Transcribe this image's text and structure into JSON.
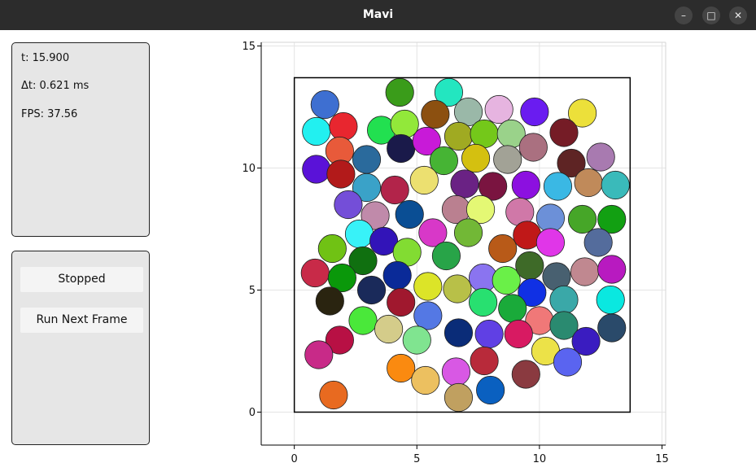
{
  "window": {
    "title": "Mavi",
    "controls": {
      "minimize": "–",
      "maximize": "□",
      "close": "✕"
    }
  },
  "info_panel": {
    "time": "t: 15.900",
    "dt": "Δt: 0.621 ms",
    "fps": "FPS: 37.56"
  },
  "controls_panel": {
    "toggle_label": "Stopped",
    "next_frame_label": "Run Next Frame"
  },
  "chart_data": {
    "type": "scatter",
    "title": "",
    "xlabel": "",
    "ylabel": "",
    "xlim": [
      -1.35,
      15.15
    ],
    "ylim": [
      -1.35,
      15.15
    ],
    "x_ticks": [
      0,
      5,
      10,
      15
    ],
    "y_ticks": [
      0,
      5,
      10,
      15
    ],
    "x_tick_labels": [
      "0",
      "5",
      "10",
      "15"
    ],
    "y_tick_labels": [
      "0",
      "5",
      "10",
      "15"
    ],
    "grid": true,
    "box": {
      "x": [
        0,
        13.7
      ],
      "y": [
        0,
        13.7
      ]
    },
    "particle_radius": 0.57,
    "particles": [
      {
        "x": 1.25,
        "y": 12.6,
        "color": "#3e6fd1"
      },
      {
        "x": 4.3,
        "y": 13.1,
        "color": "#3a9c1a"
      },
      {
        "x": 6.3,
        "y": 13.1,
        "color": "#23e6c0"
      },
      {
        "x": 0.9,
        "y": 11.5,
        "color": "#22f0f0"
      },
      {
        "x": 2.0,
        "y": 11.7,
        "color": "#e8262f"
      },
      {
        "x": 3.55,
        "y": 11.55,
        "color": "#22e050"
      },
      {
        "x": 4.5,
        "y": 11.8,
        "color": "#92e83a"
      },
      {
        "x": 5.75,
        "y": 12.2,
        "color": "#8c5010"
      },
      {
        "x": 7.1,
        "y": 12.3,
        "color": "#9ab8a8"
      },
      {
        "x": 8.35,
        "y": 12.4,
        "color": "#e6b4e0"
      },
      {
        "x": 9.8,
        "y": 12.3,
        "color": "#6a1cf0"
      },
      {
        "x": 11.75,
        "y": 12.25,
        "color": "#ece03a"
      },
      {
        "x": 1.85,
        "y": 10.7,
        "color": "#e85a3a"
      },
      {
        "x": 2.95,
        "y": 10.35,
        "color": "#2a6a9c"
      },
      {
        "x": 4.35,
        "y": 10.8,
        "color": "#1a1a4a"
      },
      {
        "x": 5.4,
        "y": 11.1,
        "color": "#c81ad8"
      },
      {
        "x": 6.7,
        "y": 11.3,
        "color": "#a0aa22"
      },
      {
        "x": 7.75,
        "y": 11.4,
        "color": "#74c81a"
      },
      {
        "x": 8.85,
        "y": 11.4,
        "color": "#9ad28a"
      },
      {
        "x": 11.0,
        "y": 11.45,
        "color": "#751c26"
      },
      {
        "x": 0.9,
        "y": 9.95,
        "color": "#5a12d8"
      },
      {
        "x": 1.9,
        "y": 9.75,
        "color": "#b21a1a"
      },
      {
        "x": 6.1,
        "y": 10.3,
        "color": "#46b434"
      },
      {
        "x": 7.4,
        "y": 10.4,
        "color": "#d4c010"
      },
      {
        "x": 8.7,
        "y": 10.35,
        "color": "#a2a296"
      },
      {
        "x": 9.75,
        "y": 10.85,
        "color": "#aa7080"
      },
      {
        "x": 11.3,
        "y": 10.2,
        "color": "#5e2424"
      },
      {
        "x": 12.5,
        "y": 10.45,
        "color": "#a87ab0"
      },
      {
        "x": 2.95,
        "y": 9.2,
        "color": "#3aa2c8"
      },
      {
        "x": 4.1,
        "y": 9.1,
        "color": "#b2244a"
      },
      {
        "x": 5.3,
        "y": 9.5,
        "color": "#ece070"
      },
      {
        "x": 6.95,
        "y": 9.35,
        "color": "#6a2284"
      },
      {
        "x": 8.1,
        "y": 9.25,
        "color": "#7a1440"
      },
      {
        "x": 9.45,
        "y": 9.3,
        "color": "#8c10e0"
      },
      {
        "x": 10.75,
        "y": 9.25,
        "color": "#3ab8e4"
      },
      {
        "x": 12.0,
        "y": 9.4,
        "color": "#c08a5a"
      },
      {
        "x": 13.1,
        "y": 9.3,
        "color": "#3ababa"
      },
      {
        "x": 2.2,
        "y": 8.5,
        "color": "#744ed8"
      },
      {
        "x": 3.3,
        "y": 8.05,
        "color": "#c08aaa"
      },
      {
        "x": 4.7,
        "y": 8.1,
        "color": "#0a4e94"
      },
      {
        "x": 6.6,
        "y": 8.3,
        "color": "#ba8090"
      },
      {
        "x": 7.6,
        "y": 8.3,
        "color": "#e4f874"
      },
      {
        "x": 9.2,
        "y": 8.2,
        "color": "#d078a8"
      },
      {
        "x": 10.45,
        "y": 7.95,
        "color": "#6c90d8"
      },
      {
        "x": 11.75,
        "y": 7.9,
        "color": "#46a628"
      },
      {
        "x": 12.95,
        "y": 7.9,
        "color": "#12a012"
      },
      {
        "x": 2.65,
        "y": 7.3,
        "color": "#38f2f8"
      },
      {
        "x": 3.65,
        "y": 7.0,
        "color": "#3214b8"
      },
      {
        "x": 5.65,
        "y": 7.35,
        "color": "#d838c8"
      },
      {
        "x": 7.1,
        "y": 7.35,
        "color": "#72b836"
      },
      {
        "x": 9.5,
        "y": 7.25,
        "color": "#c01818"
      },
      {
        "x": 10.45,
        "y": 6.95,
        "color": "#e036e8"
      },
      {
        "x": 12.4,
        "y": 6.95,
        "color": "#546c9c"
      },
      {
        "x": 1.55,
        "y": 6.7,
        "color": "#70c214"
      },
      {
        "x": 2.8,
        "y": 6.2,
        "color": "#107010"
      },
      {
        "x": 4.6,
        "y": 6.55,
        "color": "#82dc32"
      },
      {
        "x": 6.2,
        "y": 6.4,
        "color": "#28a448"
      },
      {
        "x": 8.5,
        "y": 6.7,
        "color": "#b85a18"
      },
      {
        "x": 0.85,
        "y": 5.7,
        "color": "#c82a48"
      },
      {
        "x": 1.95,
        "y": 5.5,
        "color": "#0a980a"
      },
      {
        "x": 3.15,
        "y": 5.0,
        "color": "#1a2a5a"
      },
      {
        "x": 4.2,
        "y": 5.6,
        "color": "#0a2a98"
      },
      {
        "x": 5.45,
        "y": 5.15,
        "color": "#dce428"
      },
      {
        "x": 6.65,
        "y": 5.05,
        "color": "#b8c048"
      },
      {
        "x": 7.7,
        "y": 5.5,
        "color": "#8a74f0"
      },
      {
        "x": 8.65,
        "y": 5.4,
        "color": "#6af048"
      },
      {
        "x": 9.6,
        "y": 6.0,
        "color": "#3e6a28"
      },
      {
        "x": 10.7,
        "y": 5.55,
        "color": "#486070"
      },
      {
        "x": 11.85,
        "y": 5.75,
        "color": "#c08890"
      },
      {
        "x": 12.95,
        "y": 5.85,
        "color": "#b81ac0"
      },
      {
        "x": 1.45,
        "y": 4.55,
        "color": "#2a2410"
      },
      {
        "x": 4.35,
        "y": 4.5,
        "color": "#a0182e"
      },
      {
        "x": 7.7,
        "y": 4.5,
        "color": "#28e070"
      },
      {
        "x": 9.7,
        "y": 4.9,
        "color": "#1030e4"
      },
      {
        "x": 11.0,
        "y": 4.6,
        "color": "#3aa8a8"
      },
      {
        "x": 12.9,
        "y": 4.6,
        "color": "#0ae8e0"
      },
      {
        "x": 2.8,
        "y": 3.75,
        "color": "#4ae83a"
      },
      {
        "x": 3.85,
        "y": 3.4,
        "color": "#d4cc8a"
      },
      {
        "x": 5.45,
        "y": 3.95,
        "color": "#5478e4"
      },
      {
        "x": 8.9,
        "y": 4.25,
        "color": "#1aaa3a"
      },
      {
        "x": 10.0,
        "y": 3.75,
        "color": "#f07878"
      },
      {
        "x": 11.0,
        "y": 3.55,
        "color": "#2a8a70"
      },
      {
        "x": 12.95,
        "y": 3.45,
        "color": "#2a4a6a"
      },
      {
        "x": 1.85,
        "y": 2.95,
        "color": "#b81044"
      },
      {
        "x": 5.0,
        "y": 2.95,
        "color": "#80e490"
      },
      {
        "x": 6.7,
        "y": 3.25,
        "color": "#0a2c78"
      },
      {
        "x": 7.95,
        "y": 3.2,
        "color": "#6040e4"
      },
      {
        "x": 9.15,
        "y": 3.2,
        "color": "#d81a62"
      },
      {
        "x": 10.25,
        "y": 2.5,
        "color": "#ece248"
      },
      {
        "x": 11.9,
        "y": 2.9,
        "color": "#3a1cc0"
      },
      {
        "x": 1.0,
        "y": 2.35,
        "color": "#c82a88"
      },
      {
        "x": 4.35,
        "y": 1.8,
        "color": "#fa8a10"
      },
      {
        "x": 6.6,
        "y": 1.65,
        "color": "#d858e4"
      },
      {
        "x": 7.75,
        "y": 2.1,
        "color": "#b82a3a"
      },
      {
        "x": 11.15,
        "y": 2.05,
        "color": "#5a64f0"
      },
      {
        "x": 9.45,
        "y": 1.55,
        "color": "#8a3a40"
      },
      {
        "x": 5.35,
        "y": 1.3,
        "color": "#ecc060"
      },
      {
        "x": 8.0,
        "y": 0.9,
        "color": "#0a60c0"
      },
      {
        "x": 1.6,
        "y": 0.7,
        "color": "#e86a20"
      },
      {
        "x": 6.7,
        "y": 0.6,
        "color": "#c0a060"
      }
    ]
  }
}
